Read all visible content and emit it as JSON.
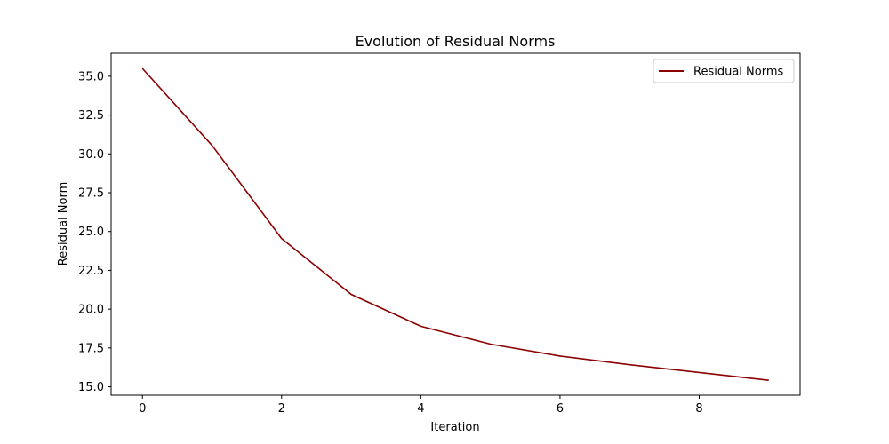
{
  "chart_data": {
    "type": "line",
    "title": "Evolution of Residual Norms",
    "xlabel": "Iteration",
    "ylabel": "Residual Norm",
    "x": [
      0,
      1,
      2,
      3,
      4,
      5,
      6,
      7,
      8,
      9
    ],
    "series": [
      {
        "name": "Residual Norms",
        "color": "#8b0000",
        "values": [
          35.5,
          30.55,
          24.55,
          20.95,
          18.9,
          17.75,
          16.98,
          16.42,
          15.92,
          15.42
        ]
      }
    ],
    "xlim": [
      -0.45,
      9.45
    ],
    "ylim": [
      14.46,
      36.48
    ],
    "xticks": [
      0,
      2,
      4,
      6,
      8
    ],
    "xtick_labels": [
      "0",
      "2",
      "4",
      "6",
      "8"
    ],
    "yticks": [
      15.0,
      17.5,
      20.0,
      22.5,
      25.0,
      27.5,
      30.0,
      32.5,
      35.0
    ],
    "ytick_labels": [
      "15.0",
      "17.5",
      "20.0",
      "22.5",
      "25.0",
      "27.5",
      "30.0",
      "32.5",
      "35.0"
    ],
    "grid": false,
    "legend_position": "top-right"
  }
}
